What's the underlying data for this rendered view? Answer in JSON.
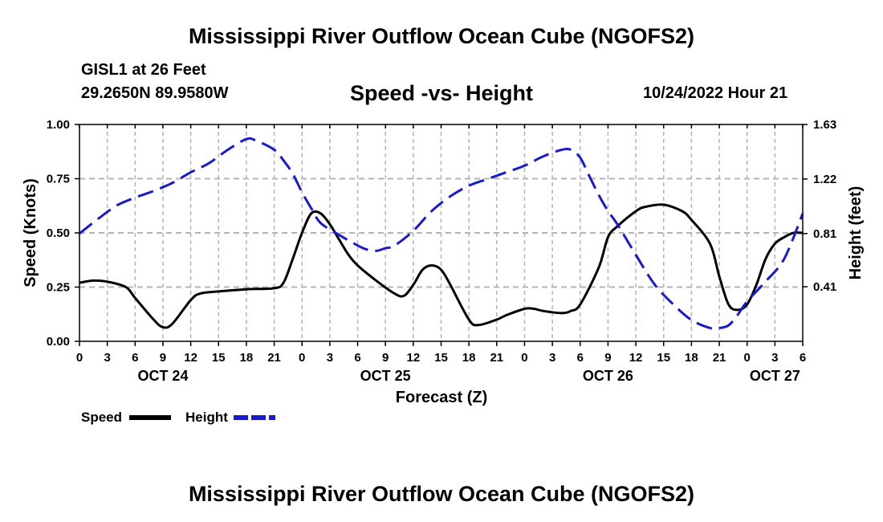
{
  "title": "Mississippi River Outflow Ocean Cube (NGOFS2)",
  "station": "GISL1 at 26 Feet",
  "location": "29.2650N  89.9580W",
  "run_time": "10/24/2022 Hour 21",
  "footer_title": "Mississippi River Outflow Ocean Cube (NGOFS2)",
  "colors": {
    "speed": "#000000",
    "height": "#1a1acc",
    "grid": "#b4b4b4"
  },
  "chart_data": {
    "type": "line",
    "title": "Speed -vs- Height",
    "xlabel": "Forecast (Z)",
    "ylabel": "Speed (Knots)",
    "y2label": "Height (feet)",
    "xlim": [
      0,
      78
    ],
    "ylim": [
      0,
      1
    ],
    "y2lim": [
      0,
      1.63
    ],
    "x_ticks": [
      0,
      3,
      6,
      9,
      12,
      15,
      18,
      21,
      24,
      27,
      30,
      33,
      36,
      39,
      42,
      45,
      48,
      51,
      54,
      57,
      60,
      63,
      66,
      69,
      72,
      75,
      78
    ],
    "x_tick_labels": [
      "0",
      "3",
      "6",
      "9",
      "12",
      "15",
      "18",
      "21",
      "0",
      "3",
      "6",
      "9",
      "12",
      "15",
      "18",
      "21",
      "0",
      "3",
      "6",
      "9",
      "12",
      "15",
      "18",
      "21",
      "0",
      "3",
      "6"
    ],
    "date_labels": [
      {
        "x": 9,
        "text": "OCT 24"
      },
      {
        "x": 33,
        "text": "OCT 25"
      },
      {
        "x": 57,
        "text": "OCT 26"
      },
      {
        "x": 75,
        "text": "OCT 27"
      }
    ],
    "y_ticks": [
      0,
      0.25,
      0.5,
      0.75,
      1
    ],
    "y_tick_labels": [
      "0.00",
      "0.25",
      "0.50",
      "0.75",
      "1.00"
    ],
    "y2_ticks": [
      0.41,
      0.81,
      1.22,
      1.63
    ],
    "y2_tick_labels": [
      "0.41",
      "0.81",
      "1.22",
      "1.63"
    ],
    "series": [
      {
        "name": "Speed",
        "axis": "left",
        "dash": "solid",
        "x": [
          0,
          1.5,
          3,
          5,
          6,
          8,
          9,
          10,
          12,
          13,
          15,
          18,
          21,
          22,
          23,
          24,
          25,
          26,
          27,
          28,
          29,
          30,
          32,
          34,
          35,
          36,
          37,
          38,
          39,
          40,
          42,
          43,
          45,
          46,
          48,
          49,
          50,
          52,
          53,
          54,
          56,
          57,
          58,
          60,
          61,
          63,
          65,
          66,
          68,
          69,
          70,
          71,
          72,
          73,
          74,
          75,
          76,
          77,
          78
        ],
        "values": [
          0.27,
          0.28,
          0.275,
          0.25,
          0.2,
          0.1,
          0.065,
          0.08,
          0.19,
          0.22,
          0.23,
          0.24,
          0.245,
          0.27,
          0.38,
          0.5,
          0.59,
          0.59,
          0.54,
          0.47,
          0.4,
          0.35,
          0.28,
          0.22,
          0.21,
          0.26,
          0.33,
          0.35,
          0.33,
          0.26,
          0.1,
          0.075,
          0.1,
          0.12,
          0.15,
          0.15,
          0.14,
          0.13,
          0.14,
          0.17,
          0.34,
          0.48,
          0.53,
          0.6,
          0.62,
          0.63,
          0.6,
          0.56,
          0.45,
          0.3,
          0.17,
          0.145,
          0.17,
          0.26,
          0.38,
          0.45,
          0.48,
          0.5,
          0.5
        ]
      },
      {
        "name": "Height",
        "axis": "right",
        "dash": "dashed",
        "x": [
          0,
          2,
          4,
          6,
          8,
          10,
          12,
          14,
          16,
          18,
          19,
          21,
          22,
          23,
          24,
          25,
          26,
          28,
          30,
          31,
          32,
          33,
          34,
          36,
          38,
          40,
          42,
          44,
          46,
          48,
          50,
          52,
          53,
          54,
          55,
          56,
          57,
          58,
          60,
          62,
          64,
          66,
          68,
          69,
          70,
          71,
          72,
          74,
          76,
          78
        ],
        "values": [
          0.81,
          0.92,
          1.02,
          1.08,
          1.13,
          1.19,
          1.27,
          1.34,
          1.44,
          1.52,
          1.51,
          1.44,
          1.36,
          1.26,
          1.12,
          1.0,
          0.89,
          0.8,
          0.72,
          0.69,
          0.68,
          0.7,
          0.72,
          0.83,
          0.98,
          1.09,
          1.17,
          1.22,
          1.27,
          1.32,
          1.39,
          1.44,
          1.44,
          1.38,
          1.24,
          1.1,
          0.98,
          0.88,
          0.65,
          0.43,
          0.28,
          0.16,
          0.1,
          0.1,
          0.12,
          0.2,
          0.3,
          0.45,
          0.62,
          0.96
        ]
      }
    ],
    "legend": {
      "position": "bottom-left",
      "entries": [
        "Speed",
        "Height"
      ]
    }
  }
}
